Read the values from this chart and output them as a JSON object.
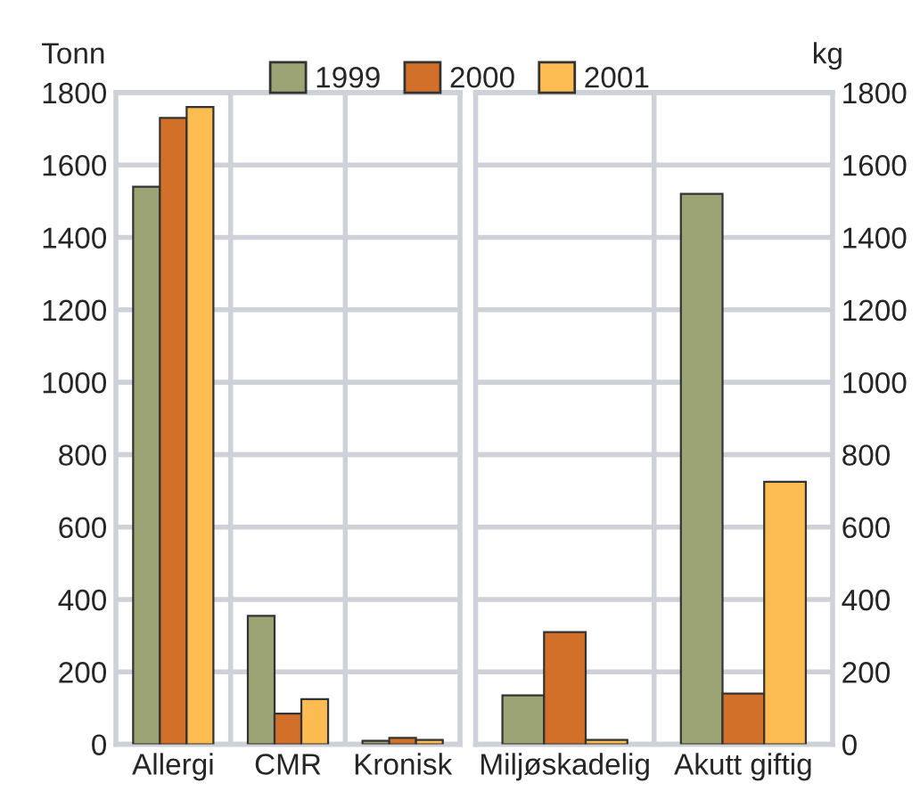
{
  "chart_data": [
    {
      "type": "bar",
      "ylabel": "Tonn",
      "categories": [
        "Allergi",
        "CMR",
        "Kronisk"
      ],
      "ylim": [
        0,
        1800
      ],
      "yticks": [
        0,
        200,
        400,
        600,
        800,
        1000,
        1200,
        1400,
        1600,
        1800
      ],
      "grid": true,
      "legend": "top",
      "series": [
        {
          "name": "1999",
          "color": "#9ca375",
          "values": [
            1540,
            355,
            10
          ]
        },
        {
          "name": "2000",
          "color": "#d2702a",
          "values": [
            1730,
            85,
            18
          ]
        },
        {
          "name": "2001",
          "color": "#fdbc52",
          "values": [
            1760,
            125,
            12
          ]
        }
      ]
    },
    {
      "type": "bar",
      "y2label": "kg",
      "categories": [
        "Miljøskadelig",
        "Akutt giftig"
      ],
      "y2lim": [
        0,
        1800
      ],
      "y2ticks": [
        0,
        200,
        400,
        600,
        800,
        1000,
        1200,
        1400,
        1600,
        1800
      ],
      "grid": true,
      "series": [
        {
          "color": "#9ca375",
          "axis": "y2",
          "values": [
            135,
            1520
          ]
        },
        {
          "color": "#d2702a",
          "axis": "y2",
          "values": [
            310,
            140
          ]
        },
        {
          "color": "#fdbc52",
          "axis": "y2",
          "values": [
            12,
            725
          ]
        }
      ]
    }
  ]
}
